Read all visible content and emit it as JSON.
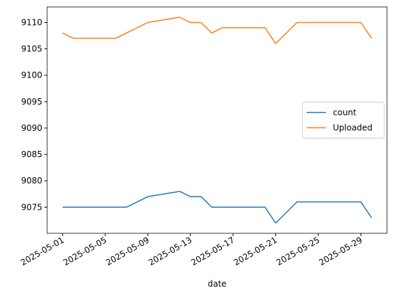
{
  "chart_data": {
    "type": "line",
    "x_label": "date",
    "x": [
      "2025-05-01",
      "2025-05-02",
      "2025-05-06",
      "2025-05-07",
      "2025-05-09",
      "2025-05-12",
      "2025-05-13",
      "2025-05-14",
      "2025-05-15",
      "2025-05-16",
      "2025-05-20",
      "2025-05-21",
      "2025-05-23",
      "2025-05-29",
      "2025-05-30"
    ],
    "series": [
      {
        "name": "count",
        "color": "#1f77b4",
        "values": [
          9075,
          9075,
          9075,
          9075,
          9077,
          9078,
          9077,
          9077,
          9075,
          9075,
          9075,
          9072,
          9076,
          9076,
          9073
        ]
      },
      {
        "name": "Uploaded",
        "color": "#ff7f0e",
        "values": [
          9108,
          9107,
          9107,
          9108,
          9110,
          9111,
          9110,
          9110,
          9108,
          9109,
          9109,
          9106,
          9110,
          9110,
          9107
        ]
      }
    ],
    "xlim": [
      "2025-04-29T13:12",
      "2025-05-31T10:48"
    ],
    "xticks": [
      "2025-05-01",
      "2025-05-05",
      "2025-05-09",
      "2025-05-13",
      "2025-05-17",
      "2025-05-21",
      "2025-05-25",
      "2025-05-29"
    ],
    "ylim": [
      9070.05,
      9112.95
    ],
    "yticks": [
      9075,
      9080,
      9085,
      9090,
      9095,
      9100,
      9105,
      9110
    ],
    "legend": "center right",
    "grid": false
  }
}
